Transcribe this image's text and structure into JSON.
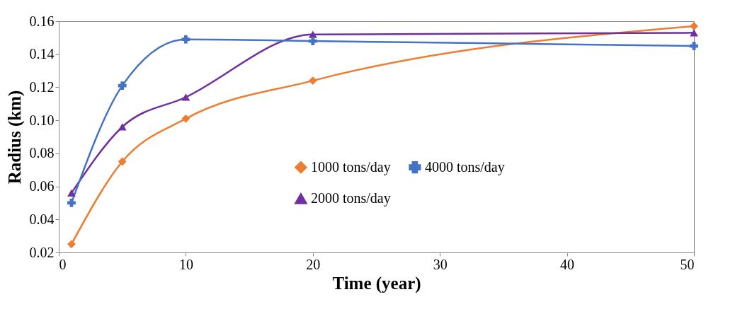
{
  "chart_data": {
    "type": "line",
    "xlabel": "Time (year)",
    "ylabel": "Radius (km)",
    "x": [
      1,
      5,
      10,
      20,
      50
    ],
    "series": [
      {
        "name": "1000 tons/day",
        "color": "#ed7d31",
        "marker": "diamond",
        "values": [
          0.025,
          0.075,
          0.101,
          0.124,
          0.157
        ]
      },
      {
        "name": "2000 tons/day",
        "color": "#7030a0",
        "marker": "triangle",
        "values": [
          0.056,
          0.096,
          0.114,
          0.152,
          0.153
        ]
      },
      {
        "name": "4000 tons/day",
        "color": "#4472c4",
        "marker": "cross",
        "values": [
          0.05,
          0.121,
          0.149,
          0.148,
          0.145
        ]
      }
    ],
    "xlim": [
      0,
      50
    ],
    "xticks": [
      0,
      10,
      20,
      30,
      40,
      50
    ],
    "ylim": [
      0.02,
      0.16
    ],
    "yticks": [
      {
        "value": 0.02,
        "label": "0.02"
      },
      {
        "value": 0.04,
        "label": "0.04"
      },
      {
        "value": 0.06,
        "label": "0.06"
      },
      {
        "value": 0.08,
        "label": "0.08"
      },
      {
        "value": 0.1,
        "label": "0.10"
      },
      {
        "value": 0.12,
        "label": "0.12"
      },
      {
        "value": 0.14,
        "label": "0.14"
      },
      {
        "value": 0.16,
        "label": "0.16"
      }
    ],
    "grid": false,
    "legend": "bottom",
    "line_style": "solid"
  }
}
